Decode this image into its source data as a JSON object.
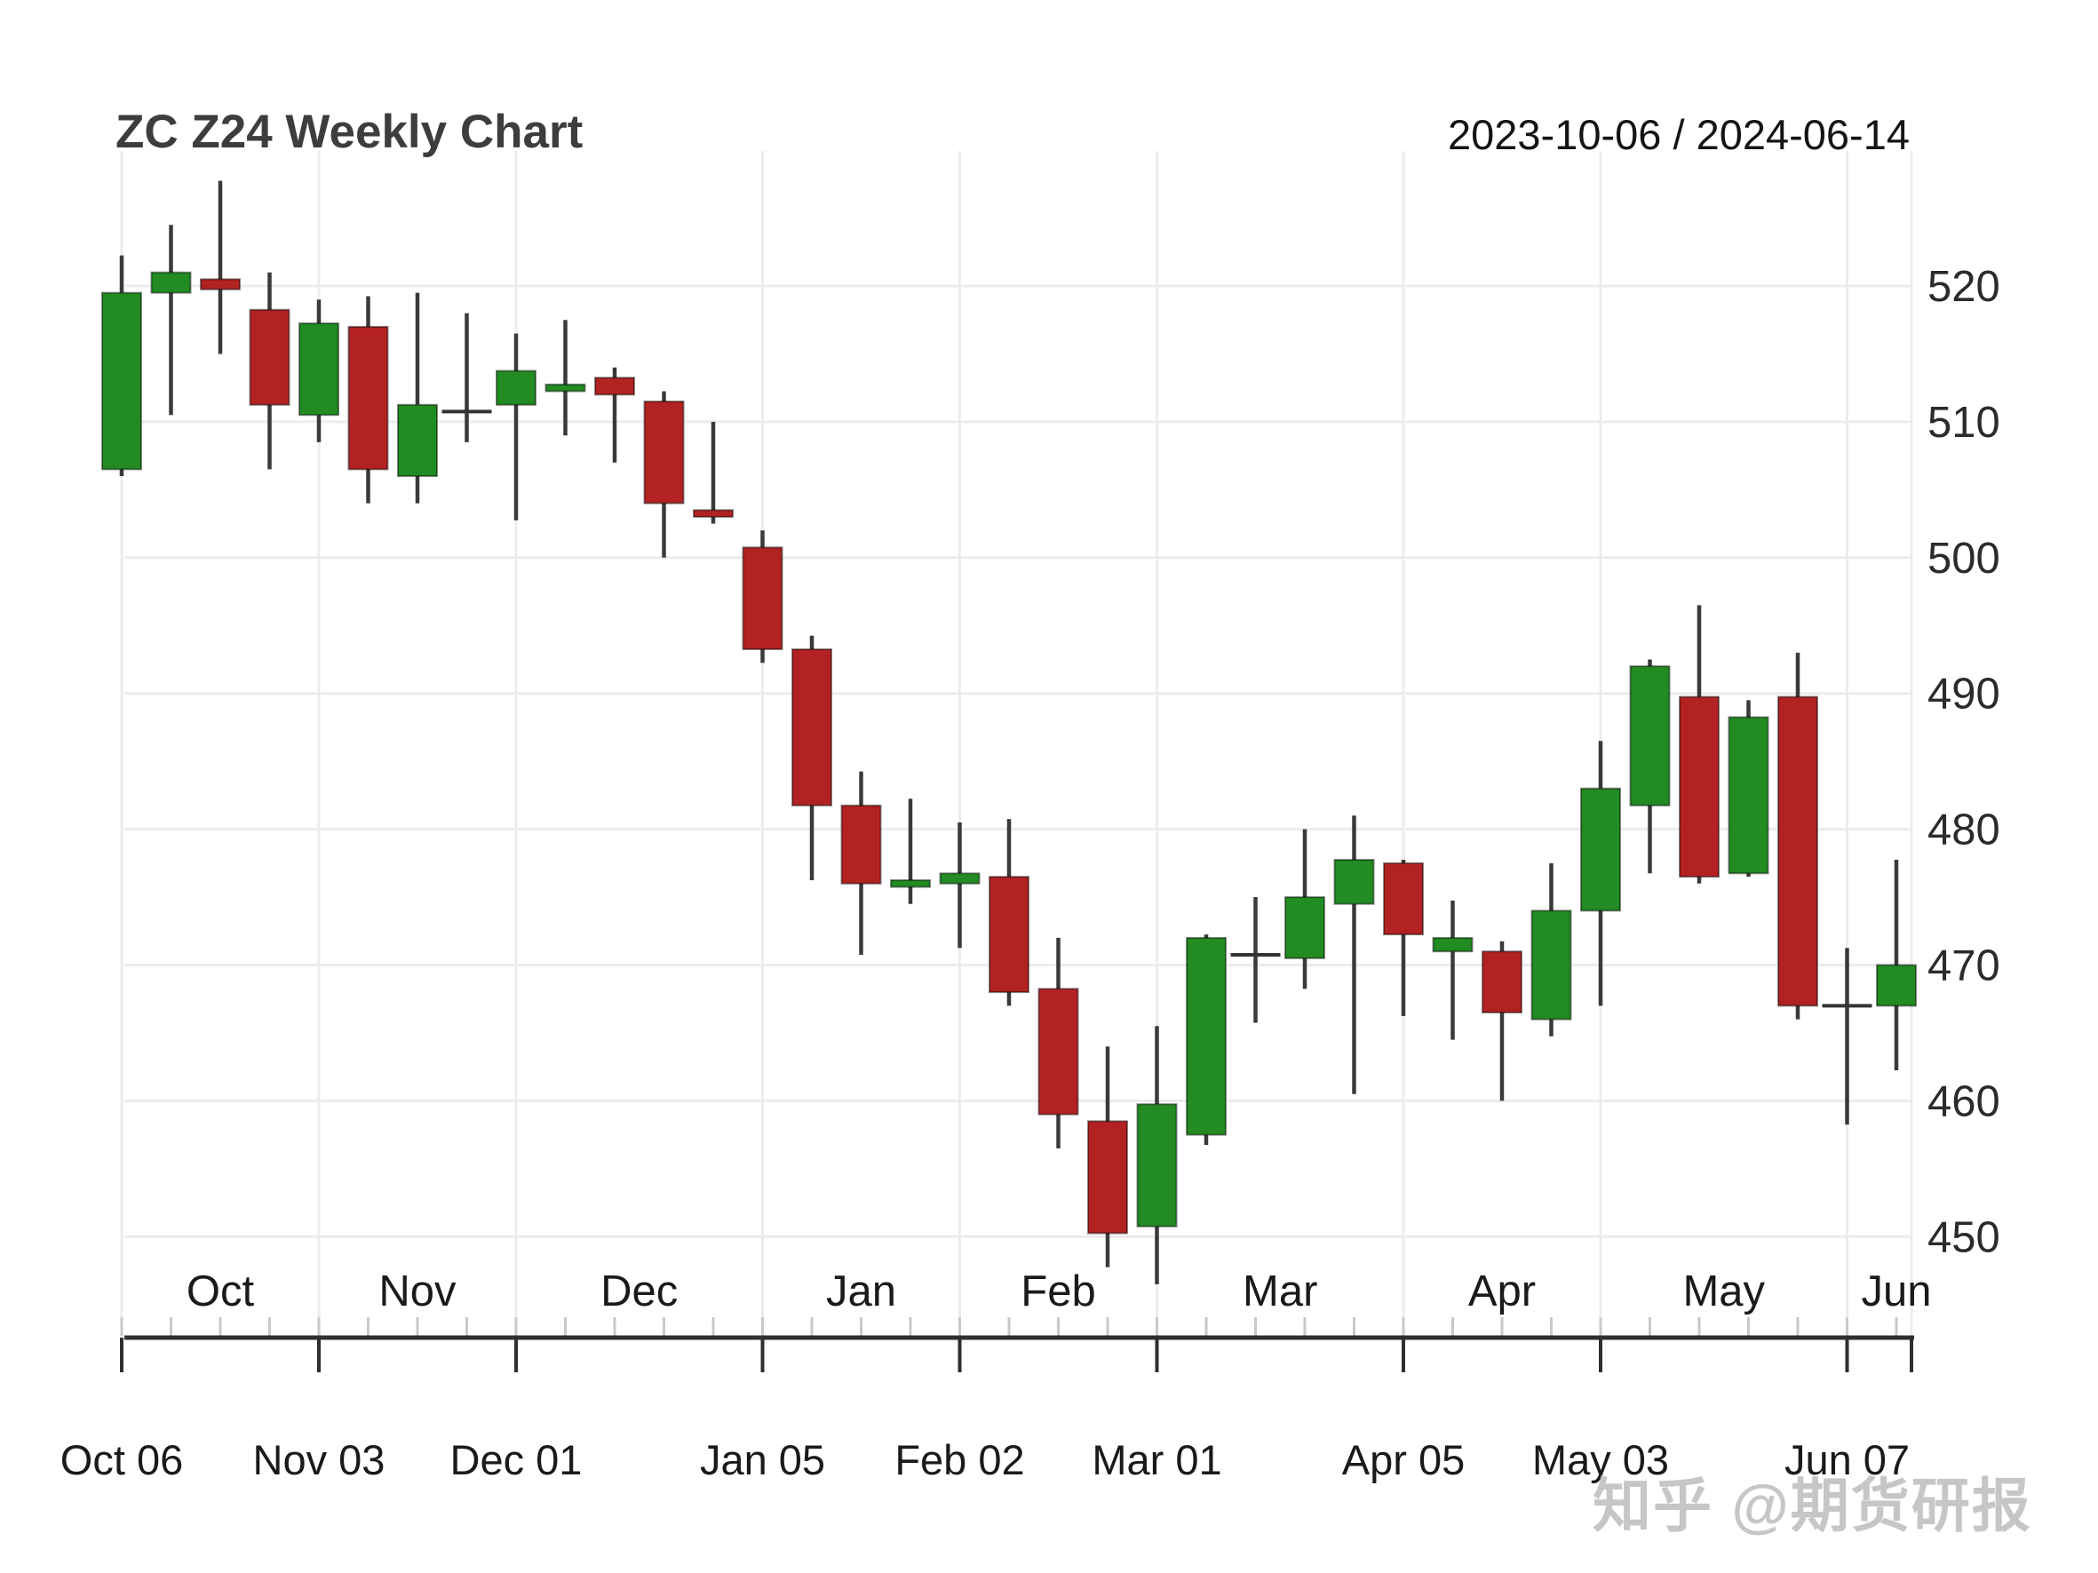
{
  "header": {
    "title": "ZC Z24 Weekly Chart",
    "date_range": "2023-10-06 / 2024-06-14"
  },
  "watermark": {
    "text": "知乎 @期货研报"
  },
  "chart_data": {
    "type": "candlestick",
    "title": "ZC Z24 Weekly Chart",
    "subtitle_range": "2023-10-06 / 2024-06-14",
    "interval": "weekly",
    "ylim": [
      444,
      531
    ],
    "y_ticks": [
      450,
      460,
      470,
      480,
      490,
      500,
      510,
      520
    ],
    "grid": true,
    "axis_side": "right",
    "colors": {
      "up": "#228B22",
      "down": "#B22222",
      "doji": "#333333",
      "wick": "#3a3a3a",
      "grid": "#ececec",
      "minor_tick": "#c9c9c9",
      "axis": "#2f2f2f",
      "label": "#1a1a1a",
      "body_border": "rgba(0,0,0,0.45)"
    },
    "months": [
      {
        "label": "Oct",
        "start_week": 0
      },
      {
        "label": "Nov",
        "start_week": 4
      },
      {
        "label": "Dec",
        "start_week": 8
      },
      {
        "label": "Jan",
        "start_week": 13
      },
      {
        "label": "Feb",
        "start_week": 17
      },
      {
        "label": "Mar",
        "start_week": 21
      },
      {
        "label": "Apr",
        "start_week": 26
      },
      {
        "label": "May",
        "start_week": 30
      },
      {
        "label": "Jun",
        "start_week": 35
      }
    ],
    "x_axis_labels": [
      {
        "label": "Oct 06",
        "week": 0
      },
      {
        "label": "Nov 03",
        "week": 4
      },
      {
        "label": "Dec 01",
        "week": 8
      },
      {
        "label": "Jan 05",
        "week": 13
      },
      {
        "label": "Feb 02",
        "week": 17
      },
      {
        "label": "Mar 01",
        "week": 21
      },
      {
        "label": "Apr 05",
        "week": 26
      },
      {
        "label": "May 03",
        "week": 30
      },
      {
        "label": "Jun 07",
        "week": 35
      }
    ],
    "series": [
      {
        "date": "2023-10-06",
        "open": 506.5,
        "high": 522.25,
        "low": 506.0,
        "close": 519.5
      },
      {
        "date": "2023-10-13",
        "open": 519.5,
        "high": 524.5,
        "low": 510.5,
        "close": 521.0
      },
      {
        "date": "2023-10-20",
        "open": 520.5,
        "high": 527.75,
        "low": 515.0,
        "close": 519.75
      },
      {
        "date": "2023-10-27",
        "open": 518.25,
        "high": 521.0,
        "low": 506.5,
        "close": 511.25
      },
      {
        "date": "2023-11-03",
        "open": 510.5,
        "high": 519.0,
        "low": 508.5,
        "close": 517.25
      },
      {
        "date": "2023-11-10",
        "open": 517.0,
        "high": 519.25,
        "low": 504.0,
        "close": 506.5
      },
      {
        "date": "2023-11-17",
        "open": 506.0,
        "high": 519.5,
        "low": 504.0,
        "close": 511.25
      },
      {
        "date": "2023-11-24",
        "open": 510.75,
        "high": 518.0,
        "low": 508.5,
        "close": 510.75
      },
      {
        "date": "2023-12-01",
        "open": 511.25,
        "high": 516.5,
        "low": 502.75,
        "close": 513.75
      },
      {
        "date": "2023-12-08",
        "open": 512.25,
        "high": 517.5,
        "low": 509.0,
        "close": 512.75
      },
      {
        "date": "2023-12-15",
        "open": 513.25,
        "high": 514.0,
        "low": 507.0,
        "close": 512.0
      },
      {
        "date": "2023-12-22",
        "open": 511.5,
        "high": 512.25,
        "low": 500.0,
        "close": 504.0
      },
      {
        "date": "2023-12-29",
        "open": 503.5,
        "high": 510.0,
        "low": 502.5,
        "close": 503.0
      },
      {
        "date": "2024-01-05",
        "open": 500.75,
        "high": 502.0,
        "low": 492.25,
        "close": 493.25
      },
      {
        "date": "2024-01-12",
        "open": 493.25,
        "high": 494.25,
        "low": 476.25,
        "close": 481.75
      },
      {
        "date": "2024-01-19",
        "open": 481.75,
        "high": 484.25,
        "low": 470.75,
        "close": 476.0
      },
      {
        "date": "2024-01-26",
        "open": 475.75,
        "high": 482.25,
        "low": 474.5,
        "close": 476.25
      },
      {
        "date": "2024-02-02",
        "open": 476.0,
        "high": 480.5,
        "low": 471.25,
        "close": 476.75
      },
      {
        "date": "2024-02-09",
        "open": 476.5,
        "high": 480.75,
        "low": 467.0,
        "close": 468.0
      },
      {
        "date": "2024-02-16",
        "open": 468.25,
        "high": 472.0,
        "low": 456.5,
        "close": 459.0
      },
      {
        "date": "2024-02-23",
        "open": 458.5,
        "high": 464.0,
        "low": 447.75,
        "close": 450.25
      },
      {
        "date": "2024-03-01",
        "open": 450.75,
        "high": 465.5,
        "low": 446.5,
        "close": 459.75
      },
      {
        "date": "2024-03-08",
        "open": 457.5,
        "high": 472.25,
        "low": 456.75,
        "close": 472.0
      },
      {
        "date": "2024-03-15",
        "open": 470.75,
        "high": 475.0,
        "low": 465.75,
        "close": 470.75
      },
      {
        "date": "2024-03-22",
        "open": 470.5,
        "high": 480.0,
        "low": 468.25,
        "close": 475.0
      },
      {
        "date": "2024-03-29",
        "open": 474.5,
        "high": 481.0,
        "low": 460.5,
        "close": 477.75
      },
      {
        "date": "2024-04-05",
        "open": 477.5,
        "high": 477.75,
        "low": 466.25,
        "close": 472.25
      },
      {
        "date": "2024-04-12",
        "open": 471.0,
        "high": 474.75,
        "low": 464.5,
        "close": 472.0
      },
      {
        "date": "2024-04-19",
        "open": 471.0,
        "high": 471.75,
        "low": 460.0,
        "close": 466.5
      },
      {
        "date": "2024-04-26",
        "open": 466.0,
        "high": 477.5,
        "low": 464.75,
        "close": 474.0
      },
      {
        "date": "2024-05-03",
        "open": 474.0,
        "high": 486.5,
        "low": 467.0,
        "close": 483.0
      },
      {
        "date": "2024-05-10",
        "open": 481.75,
        "high": 492.5,
        "low": 476.75,
        "close": 492.0
      },
      {
        "date": "2024-05-17",
        "open": 489.75,
        "high": 496.5,
        "low": 476.0,
        "close": 476.5
      },
      {
        "date": "2024-05-24",
        "open": 476.75,
        "high": 489.5,
        "low": 476.5,
        "close": 488.25
      },
      {
        "date": "2024-05-31",
        "open": 489.75,
        "high": 493.0,
        "low": 466.0,
        "close": 467.0
      },
      {
        "date": "2024-06-07",
        "open": 467.0,
        "high": 471.25,
        "low": 458.25,
        "close": 467.0
      },
      {
        "date": "2024-06-14",
        "open": 467.0,
        "high": 477.75,
        "low": 462.25,
        "close": 470.0
      }
    ]
  }
}
